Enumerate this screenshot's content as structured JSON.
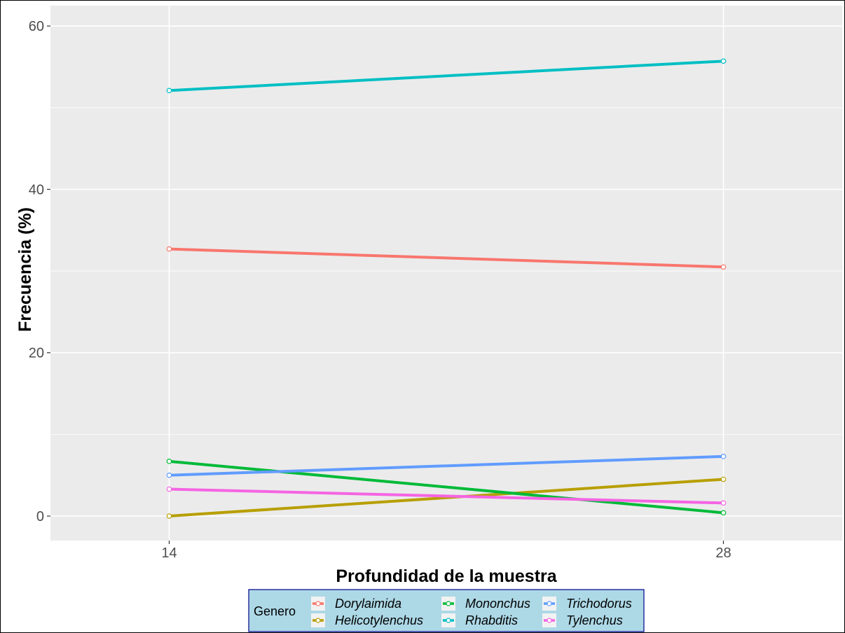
{
  "chart_data": {
    "type": "line",
    "title": "",
    "xlabel": "Profundidad de la muestra",
    "ylabel": "Frecuencia (%)",
    "x": [
      14,
      28
    ],
    "x_tick_labels": [
      "14",
      "28"
    ],
    "y_ticks": [
      0,
      20,
      40,
      60
    ],
    "ylim": [
      -3,
      62.5
    ],
    "grid": true,
    "legend": {
      "title": "Genero",
      "placement": "bottom"
    },
    "series": [
      {
        "name": "Dorylaimida",
        "color": "#F8766D",
        "values": [
          32.7,
          30.5
        ]
      },
      {
        "name": "Helicotylenchus",
        "color": "#B79F00",
        "values": [
          0.0,
          4.5
        ]
      },
      {
        "name": "Mononchus",
        "color": "#00BA38",
        "values": [
          6.7,
          0.4
        ]
      },
      {
        "name": "Rhabditis",
        "color": "#00BFC4",
        "values": [
          52.1,
          55.7
        ]
      },
      {
        "name": "Trichodorus",
        "color": "#619CFF",
        "values": [
          5.0,
          7.3
        ]
      },
      {
        "name": "Tylenchus",
        "color": "#F564E3",
        "values": [
          3.3,
          1.6
        ]
      }
    ]
  },
  "colors": {
    "panel_background": "#EBEBEB",
    "grid": "#FFFFFF",
    "legend_background": "#ADD8E6",
    "legend_border": "#00008B"
  }
}
